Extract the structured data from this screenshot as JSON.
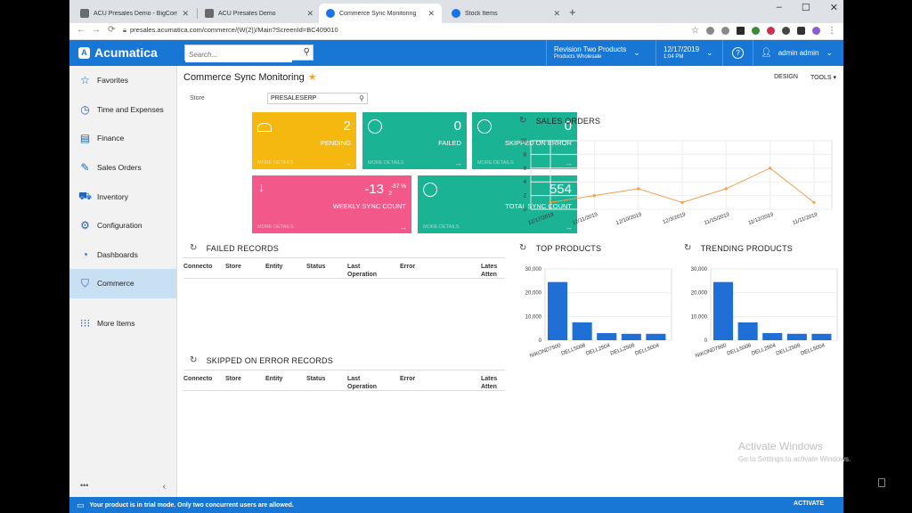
{
  "browser": {
    "tabs": [
      {
        "title": "ACU Presales Demo - BigComm"
      },
      {
        "title": "ACU Presales Demo"
      },
      {
        "title": "Commerce Sync Monitoring"
      },
      {
        "title": "Stock Items"
      }
    ],
    "url": "presales.acumatica.com/commerce/(W(2))/Main?ScreenId=BC409010",
    "new_tab": "+",
    "window_controls": {
      "minimize": "–",
      "maximize": "☐",
      "close": "✕"
    }
  },
  "header": {
    "logo": "Acumatica",
    "search_placeholder": "Search...",
    "company_line1": "Revision Two Products",
    "company_line2": "Products Wholesale",
    "date": "12/17/2019",
    "time": "1:04 PM",
    "help": "?",
    "user": "admin admin"
  },
  "sidebar": {
    "items": [
      {
        "label": "Favorites",
        "icon": "star-icon"
      },
      {
        "label": "Time and Expenses",
        "icon": "clock-icon"
      },
      {
        "label": "Finance",
        "icon": "finance-icon"
      },
      {
        "label": "Sales Orders",
        "icon": "edit-icon"
      },
      {
        "label": "Inventory",
        "icon": "truck-icon"
      },
      {
        "label": "Configuration",
        "icon": "gear-icon"
      },
      {
        "label": "Dashboards",
        "icon": "gauge-icon"
      },
      {
        "label": "Commerce",
        "icon": "basket-icon"
      }
    ],
    "more": "More Items",
    "dots": "•••",
    "collapse": "‹"
  },
  "page": {
    "title": "Commerce Sync Monitoring",
    "design": "DESIGN",
    "tools": "TOOLS ▾",
    "store_label": "Store",
    "store_value": "PRESALESERP"
  },
  "tiles": {
    "pending": {
      "value": "2",
      "label": "PENDING",
      "more": "MORE DETAILS",
      "color": "#f5b80f"
    },
    "failed": {
      "value": "0",
      "label": "FAILED",
      "more": "MORE DETAILS",
      "color": "#1ab394"
    },
    "skipped": {
      "value": "0",
      "label": "SKIPPED ON ERROR",
      "more": "MORE DETAILS",
      "color": "#1ab394"
    },
    "weekly": {
      "value": "-13",
      "sup1": "-87 %",
      "sup2": "2",
      "label": "WEEKLY SYNC COUNT",
      "more": "MORE DETAILS",
      "color": "#f2588a"
    },
    "total": {
      "value": "554",
      "label": "TOTAL SYNC COUNT",
      "more": "MORE DETAILS",
      "color": "#1ab394"
    }
  },
  "failed_records": {
    "title": "FAILED RECORDS",
    "columns": [
      "Connecto",
      "Store",
      "Entity",
      "Status",
      "Last Operation",
      "Error",
      "Lates Atten"
    ]
  },
  "skipped_records": {
    "title": "SKIPPED ON ERROR RECORDS",
    "columns": [
      "Connecto",
      "Store",
      "Entity",
      "Status",
      "Last Operation",
      "Error",
      "Lates Atten"
    ]
  },
  "charts": {
    "sales_orders_title": "SALES ORDERS",
    "top_products_title": "TOP PRODUCTS",
    "trending_products_title": "TRENDING PRODUCTS"
  },
  "chart_data": [
    {
      "type": "line",
      "title": "SALES ORDERS",
      "categories": [
        "12/17/2019",
        "12/11/2019",
        "12/10/2019",
        "12/3/2019",
        "11/15/2019",
        "11/12/2019",
        "11/11/2019"
      ],
      "values": [
        1,
        2,
        3,
        1,
        3,
        6,
        1
      ],
      "ylim": [
        0,
        10
      ],
      "yticks": [
        "0",
        "2",
        "4",
        "6",
        "8",
        "10"
      ],
      "color": "#f0a050"
    },
    {
      "type": "bar",
      "title": "TOP PRODUCTS",
      "categories": [
        "NIKOND7500",
        "DELL5008",
        "DELL2504",
        "DELL2508",
        "DELL5004"
      ],
      "values": [
        24500,
        7500,
        3000,
        2700,
        2700
      ],
      "ylim": [
        0,
        30000
      ],
      "yticks": [
        "0",
        "10,000",
        "20,000",
        "30,000"
      ],
      "color": "#1f6fd6"
    },
    {
      "type": "bar",
      "title": "TRENDING PRODUCTS",
      "categories": [
        "NIKOND7500",
        "DELL5008",
        "DELL2504",
        "DELL2508",
        "DELL5004"
      ],
      "values": [
        24500,
        7500,
        3000,
        2700,
        2700
      ],
      "ylim": [
        0,
        30000
      ],
      "yticks": [
        "0",
        "10,000",
        "20,000",
        "30,000"
      ],
      "color": "#1f6fd6"
    }
  ],
  "footer": {
    "message": "Your product is in trial mode. Only two concurrent users are allowed.",
    "activate": "ACTIVATE"
  },
  "watermark": {
    "line1": "Activate Windows",
    "line2": "Go to Settings to activate Windows."
  }
}
